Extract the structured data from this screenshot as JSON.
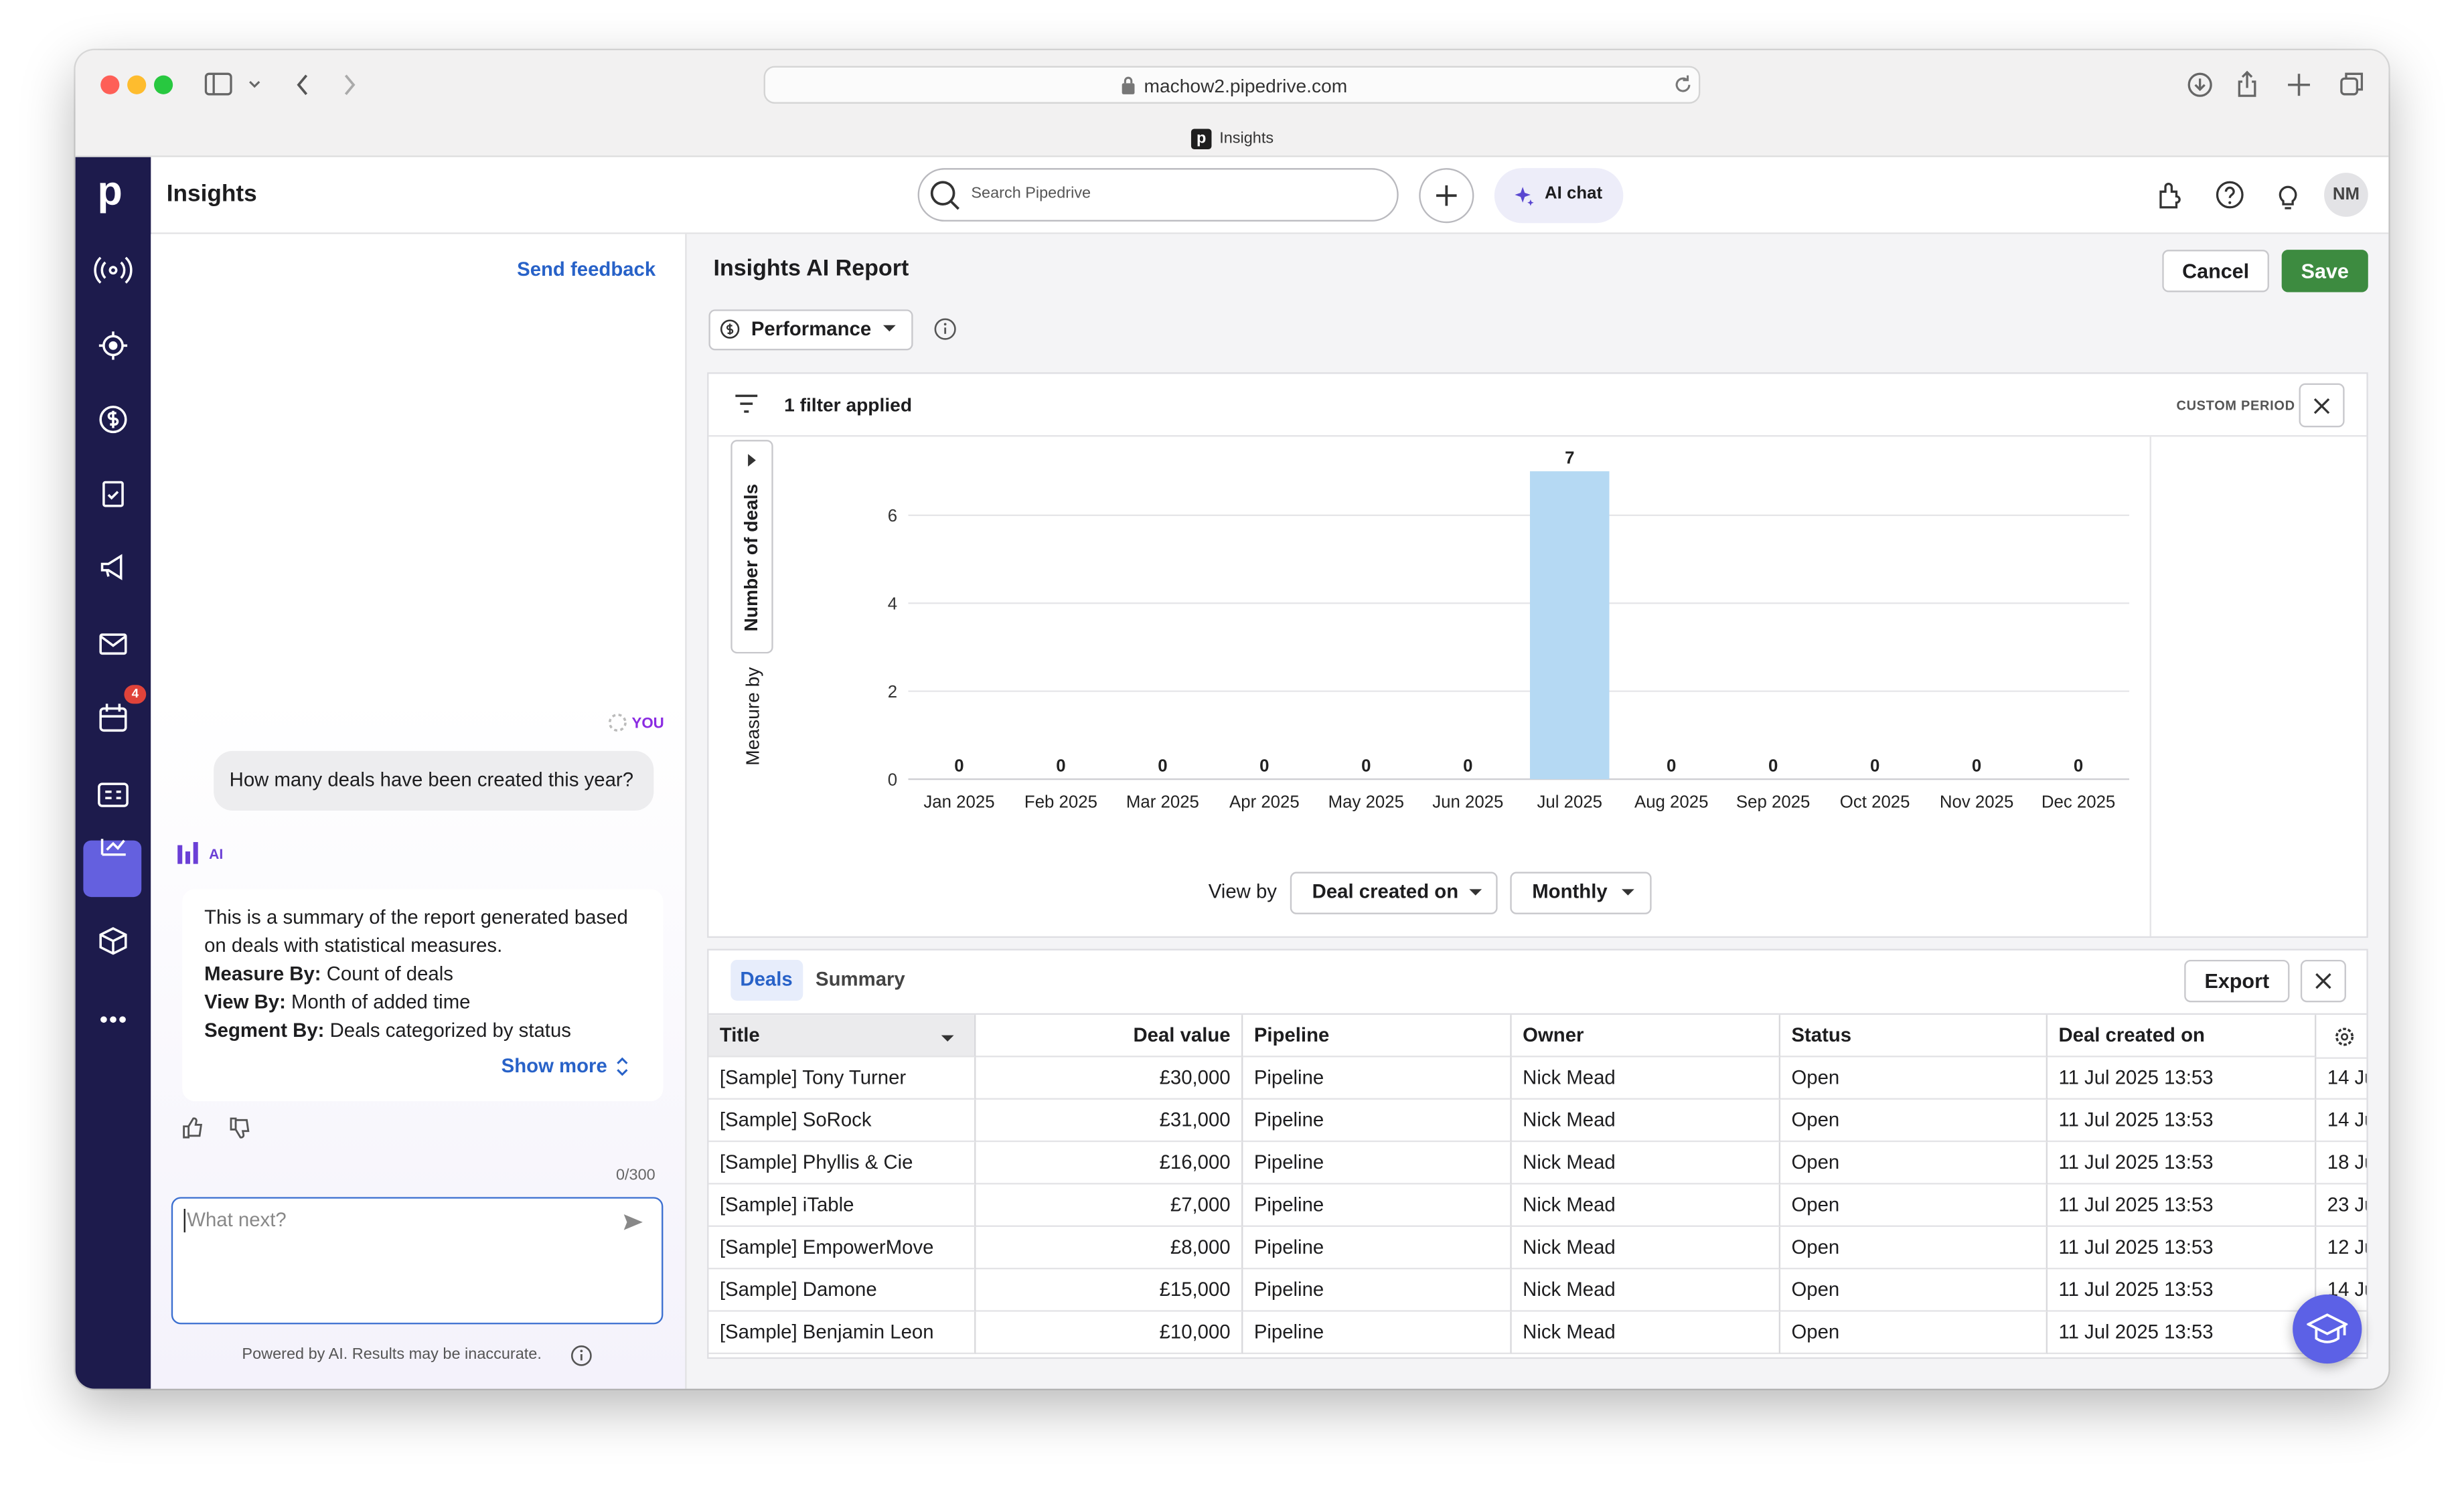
{
  "browser": {
    "url": "machow2.pipedrive.com",
    "tab": "Insights"
  },
  "app": {
    "logo": "p",
    "title": "Insights",
    "search_placeholder": "Search Pipedrive",
    "ai_chat": "AI chat",
    "avatar": "NM",
    "badge": "4"
  },
  "chat": {
    "send_feedback": "Send feedback",
    "you": "YOU",
    "question": "How many deals have been created this year?",
    "ai": "AI",
    "summary_intro": "This is a summary of the report generated based on deals with statistical measures.",
    "summary_items": [
      {
        "label": "Measure By:",
        "text": " Count of deals"
      },
      {
        "label": "View By:",
        "text": " Month of added time"
      },
      {
        "label": "Segment By:",
        "text": " Deals categorized by status"
      }
    ],
    "show_more": "Show more",
    "counter": "0/300",
    "input_placeholder": "What next?",
    "disclaimer": "Powered by AI. Results may be inaccurate."
  },
  "report": {
    "title": "Insights AI Report",
    "cancel": "Cancel",
    "save": "Save",
    "dropdown": "Performance",
    "filter": "1 filter applied",
    "custom_period": "CUSTOM PERIOD",
    "measure_by": "Measure by",
    "measure": "Number of deals",
    "view_by": "View by",
    "view_field": "Deal created on",
    "interval": "Monthly"
  },
  "chart_data": {
    "type": "bar",
    "categories": [
      "Jan 2025",
      "Feb 2025",
      "Mar 2025",
      "Apr 2025",
      "May 2025",
      "Jun 2025",
      "Jul 2025",
      "Aug 2025",
      "Sep 2025",
      "Oct 2025",
      "Nov 2025",
      "Dec 2025"
    ],
    "values": [
      0,
      0,
      0,
      0,
      0,
      0,
      7,
      0,
      0,
      0,
      0,
      0
    ],
    "color": "#b5d9f3",
    "ylim": [
      0,
      7
    ],
    "yticks": [
      0,
      2,
      4,
      6
    ],
    "grid": true
  },
  "table": {
    "tabs": [
      "Deals",
      "Summary"
    ],
    "export": "Export",
    "columns": [
      "Title",
      "Deal value",
      "Pipeline",
      "Owner",
      "Status",
      "Deal created on"
    ],
    "rows": [
      [
        "[Sample] Tony Turner",
        "£30,000",
        "Pipeline",
        "Nick Mead",
        "Open",
        "11 Jul 2025 13:53"
      ],
      [
        "[Sample] SoRock",
        "£31,000",
        "Pipeline",
        "Nick Mead",
        "Open",
        "11 Jul 2025 13:53"
      ],
      [
        "[Sample] Phyllis & Cie",
        "£16,000",
        "Pipeline",
        "Nick Mead",
        "Open",
        "11 Jul 2025 13:53"
      ],
      [
        "[Sample] iTable",
        "£7,000",
        "Pipeline",
        "Nick Mead",
        "Open",
        "11 Jul 2025 13:53"
      ],
      [
        "[Sample] EmpowerMove",
        "£8,000",
        "Pipeline",
        "Nick Mead",
        "Open",
        "11 Jul 2025 13:53"
      ],
      [
        "[Sample] Damone",
        "£15,000",
        "Pipeline",
        "Nick Mead",
        "Open",
        "11 Jul 2025 13:53"
      ],
      [
        "[Sample] Benjamin Leon",
        "£10,000",
        "Pipeline",
        "Nick Mead",
        "Open",
        "11 Jul 2025 13:53"
      ]
    ],
    "date_peek": [
      "14 Ju",
      "14 Ju",
      "18 Ju",
      "23 Ju",
      "12 Ju",
      "14 Ju"
    ]
  }
}
